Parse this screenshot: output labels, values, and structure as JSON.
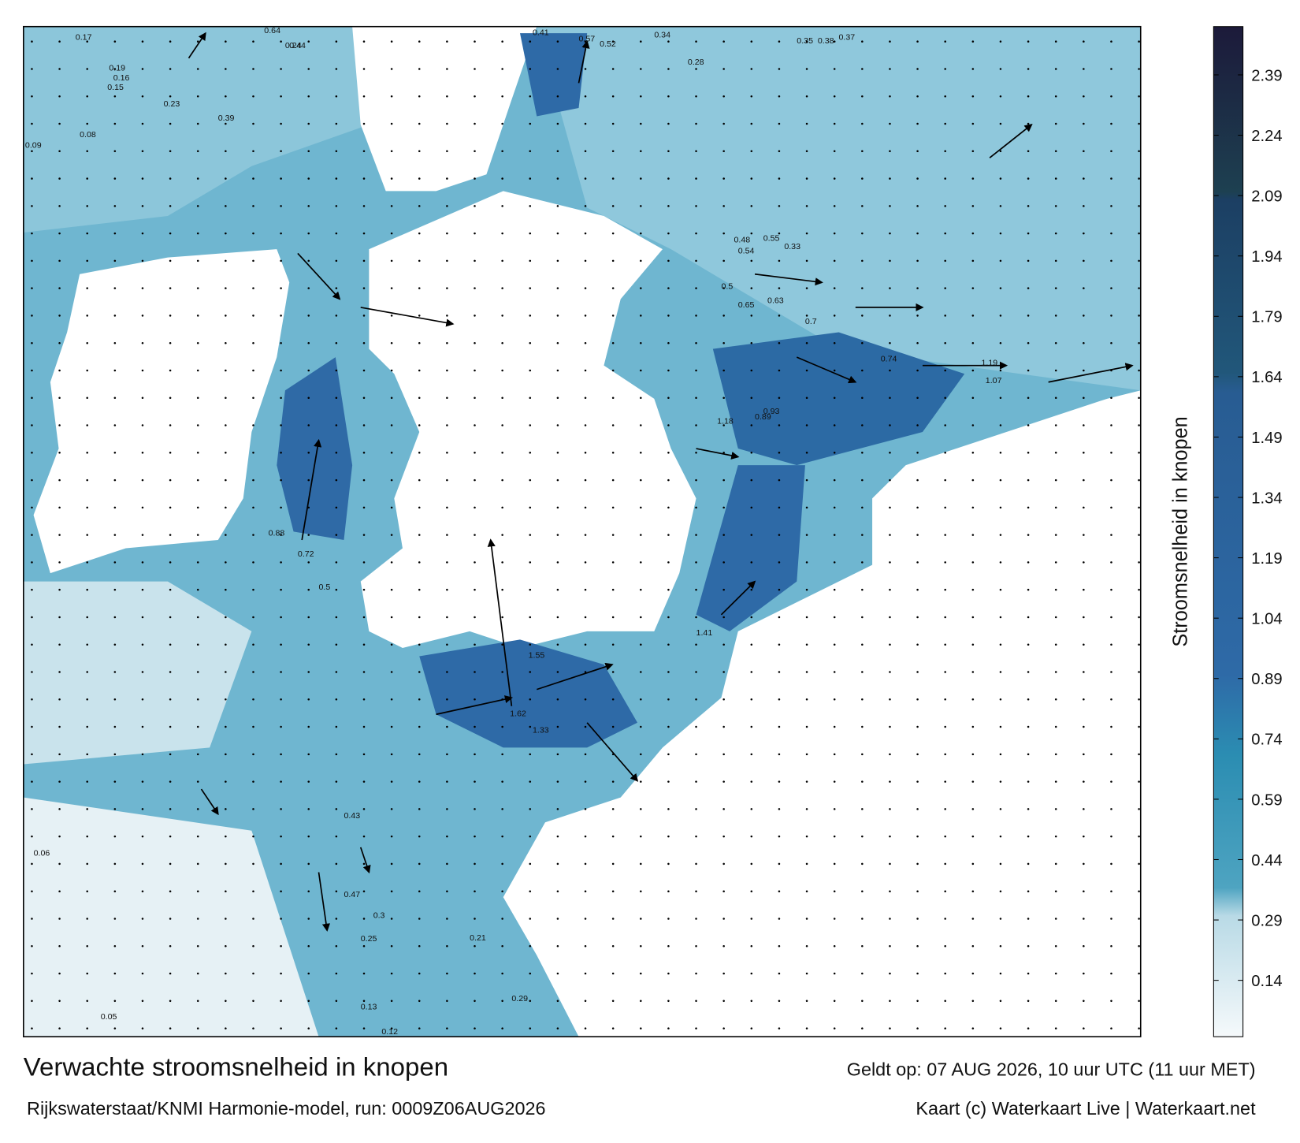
{
  "title": "Verwachte stroomsnelheid in knopen",
  "subtitle": "Rijkswaterstaat/KNMI Harmonie-model, run: 0009Z06AUG2026",
  "valid_time": "Geldt op: 07 AUG 2026, 10 uur UTC (11 uur MET)",
  "credit": "Kaart (c) Waterkaart Live | Waterkaart.net",
  "colorbar": {
    "label": "Stroomsnelheid in knopen",
    "range": [
      0,
      2.51
    ],
    "ticks": [
      0.14,
      0.29,
      0.44,
      0.59,
      0.74,
      0.89,
      1.04,
      1.19,
      1.34,
      1.49,
      1.64,
      1.79,
      1.94,
      2.09,
      2.24,
      2.39
    ],
    "colors": [
      {
        "value": 0,
        "color": "#f5f9fb"
      },
      {
        "value": 0.3,
        "color": "#b9dae6"
      },
      {
        "value": 0.37,
        "color": "#4ea4c1"
      },
      {
        "value": 0.7,
        "color": "#2b8db2"
      },
      {
        "value": 0.9,
        "color": "#2e6aa7"
      },
      {
        "value": 1.6,
        "color": "#285c92"
      },
      {
        "value": 1.65,
        "color": "#21577a"
      },
      {
        "value": 2.08,
        "color": "#1c3f63"
      },
      {
        "value": 2.1,
        "color": "#1d4051"
      },
      {
        "value": 2.51,
        "color": "#1c1a3a"
      }
    ]
  },
  "map_labels": [
    "0.17",
    "0.19",
    "0.16",
    "0.15",
    "0.23",
    "0.08",
    "0.09",
    "0.64",
    "0.44",
    "0.24",
    "0.35",
    "0.38",
    "0.37",
    "0.28",
    "0.39",
    "0.34",
    "0.41",
    "0.57",
    "0.52",
    "0.54",
    "0.33",
    "0.55",
    "0.48",
    "0.5",
    "0.63",
    "0.65",
    "0.7",
    "0.74",
    "0.89",
    "0.93",
    "1.07",
    "1.19",
    "1.41",
    "1.55",
    "1.62",
    "1.33",
    "1.18",
    "0.88",
    "0.72",
    "0.5",
    "0.43",
    "0.47",
    "0.3",
    "0.25",
    "0.06",
    "0.05",
    "0.12",
    "0.13",
    "0.21",
    "0.29"
  ]
}
